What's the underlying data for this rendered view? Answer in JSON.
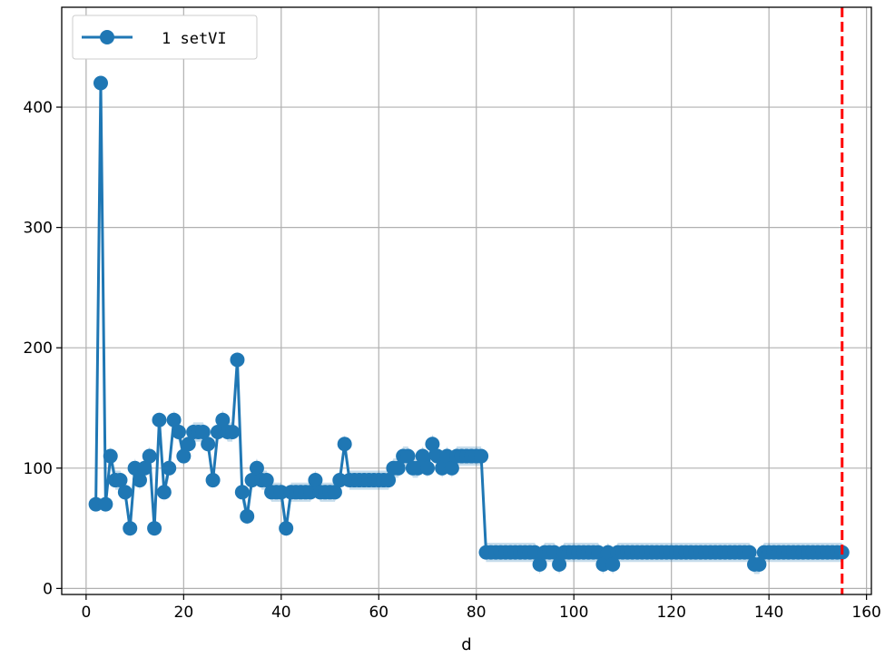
{
  "chart_data": {
    "type": "line",
    "xlabel": "d",
    "ylabel": "",
    "title": "",
    "xlim": [
      -5,
      161
    ],
    "ylim": [
      -5,
      483
    ],
    "xticks": [
      0,
      20,
      40,
      60,
      80,
      100,
      120,
      140,
      160
    ],
    "yticks": [
      0,
      100,
      200,
      300,
      400
    ],
    "grid": true,
    "legend_position": "top-left",
    "vline": {
      "x": 155,
      "color": "#ff0000",
      "style": "dashed"
    },
    "series": [
      {
        "name": "1 setVI",
        "color": "#1f77b4",
        "x": [
          2,
          3,
          4,
          5,
          6,
          7,
          8,
          9,
          10,
          11,
          12,
          13,
          14,
          15,
          16,
          17,
          18,
          19,
          20,
          21,
          22,
          23,
          24,
          25,
          26,
          27,
          28,
          29,
          30,
          31,
          32,
          33,
          34,
          35,
          36,
          37,
          38,
          39,
          40,
          41,
          42,
          43,
          44,
          45,
          46,
          47,
          48,
          49,
          50,
          51,
          52,
          53,
          54,
          55,
          56,
          57,
          58,
          59,
          60,
          61,
          62,
          63,
          64,
          65,
          66,
          67,
          68,
          69,
          70,
          71,
          72,
          73,
          74,
          75,
          76,
          77,
          78,
          79,
          80,
          81,
          82,
          83,
          84,
          85,
          86,
          87,
          88,
          89,
          90,
          91,
          92,
          93,
          94,
          95,
          96,
          97,
          98,
          99,
          100,
          101,
          102,
          103,
          104,
          105,
          106,
          107,
          108,
          109,
          110,
          111,
          112,
          113,
          114,
          115,
          116,
          117,
          118,
          119,
          120,
          121,
          122,
          123,
          124,
          125,
          126,
          127,
          128,
          129,
          130,
          131,
          132,
          133,
          134,
          135,
          136,
          137,
          138,
          139,
          140,
          141,
          142,
          143,
          144,
          145,
          146,
          147,
          148,
          149,
          150,
          151,
          152,
          153,
          154,
          155
        ],
        "y": [
          70,
          420,
          70,
          110,
          90,
          90,
          80,
          50,
          100,
          90,
          100,
          110,
          50,
          140,
          80,
          100,
          140,
          130,
          110,
          120,
          130,
          130,
          130,
          120,
          90,
          130,
          140,
          130,
          130,
          190,
          80,
          60,
          90,
          100,
          90,
          90,
          80,
          80,
          80,
          50,
          80,
          80,
          80,
          80,
          80,
          90,
          80,
          80,
          80,
          80,
          90,
          120,
          90,
          90,
          90,
          90,
          90,
          90,
          90,
          90,
          90,
          100,
          100,
          110,
          110,
          100,
          100,
          110,
          100,
          120,
          110,
          100,
          110,
          100,
          110,
          110,
          110,
          110,
          110,
          110,
          30,
          30,
          30,
          30,
          30,
          30,
          30,
          30,
          30,
          30,
          30,
          20,
          30,
          30,
          30,
          20,
          30,
          30,
          30,
          30,
          30,
          30,
          30,
          30,
          20,
          30,
          20,
          30,
          30,
          30,
          30,
          30,
          30,
          30,
          30,
          30,
          30,
          30,
          30,
          30,
          30,
          30,
          30,
          30,
          30,
          30,
          30,
          30,
          30,
          30,
          30,
          30,
          30,
          30,
          30,
          20,
          20,
          30,
          30,
          30,
          30,
          30,
          30,
          30,
          30,
          30,
          30,
          30,
          30,
          30,
          30,
          30,
          30,
          30
        ]
      }
    ]
  }
}
